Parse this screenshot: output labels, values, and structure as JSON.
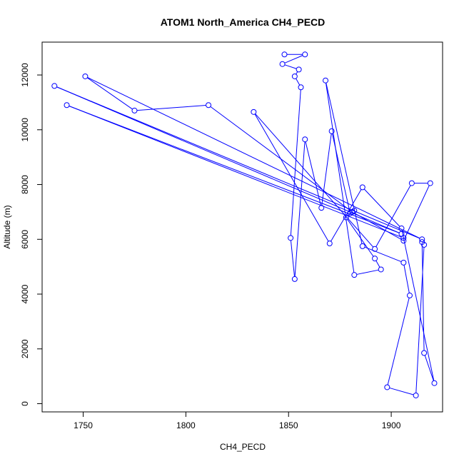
{
  "chart_data": {
    "type": "line",
    "title": "ATOM1 North_America CH4_PECD",
    "xlabel": "CH4_PECD",
    "ylabel": "Altitude (m)",
    "xlim": [
      1730,
      1925
    ],
    "ylim": [
      -300,
      13200
    ],
    "x_ticks": [
      1750,
      1800,
      1850,
      1900
    ],
    "y_ticks": [
      0,
      2000,
      4000,
      6000,
      8000,
      10000,
      12000
    ],
    "grid": false,
    "legend": "none",
    "marker": "open-circle",
    "color": "#0000ff",
    "series": [
      {
        "x": [
          1848,
          1858,
          1847,
          1855,
          1853,
          1856,
          1851,
          1853,
          1858,
          1866,
          1871,
          1880,
          1882,
          1878,
          1892,
          1895,
          1882,
          1868,
          1886,
          1906,
          1909,
          1898,
          1912,
          1916,
          1915,
          1916,
          1921,
          1905,
          1886,
          1870,
          1833,
          1892,
          1910,
          1919,
          1906,
          1881,
          1811,
          1775,
          1751,
          1915,
          1736,
          1905,
          1742,
          1906
        ],
        "y": [
          12750,
          12750,
          12400,
          12200,
          11950,
          11550,
          6050,
          4550,
          9650,
          7150,
          9950,
          6950,
          7050,
          6800,
          5300,
          4900,
          4700,
          11800,
          5750,
          5150,
          3950,
          600,
          300,
          5800,
          5900,
          1850,
          750,
          6400,
          7900,
          5850,
          10650,
          5650,
          8050,
          8050,
          5950,
          7000,
          10900,
          10700,
          11950,
          6000,
          11600,
          6200,
          10900,
          6050
        ]
      }
    ]
  }
}
